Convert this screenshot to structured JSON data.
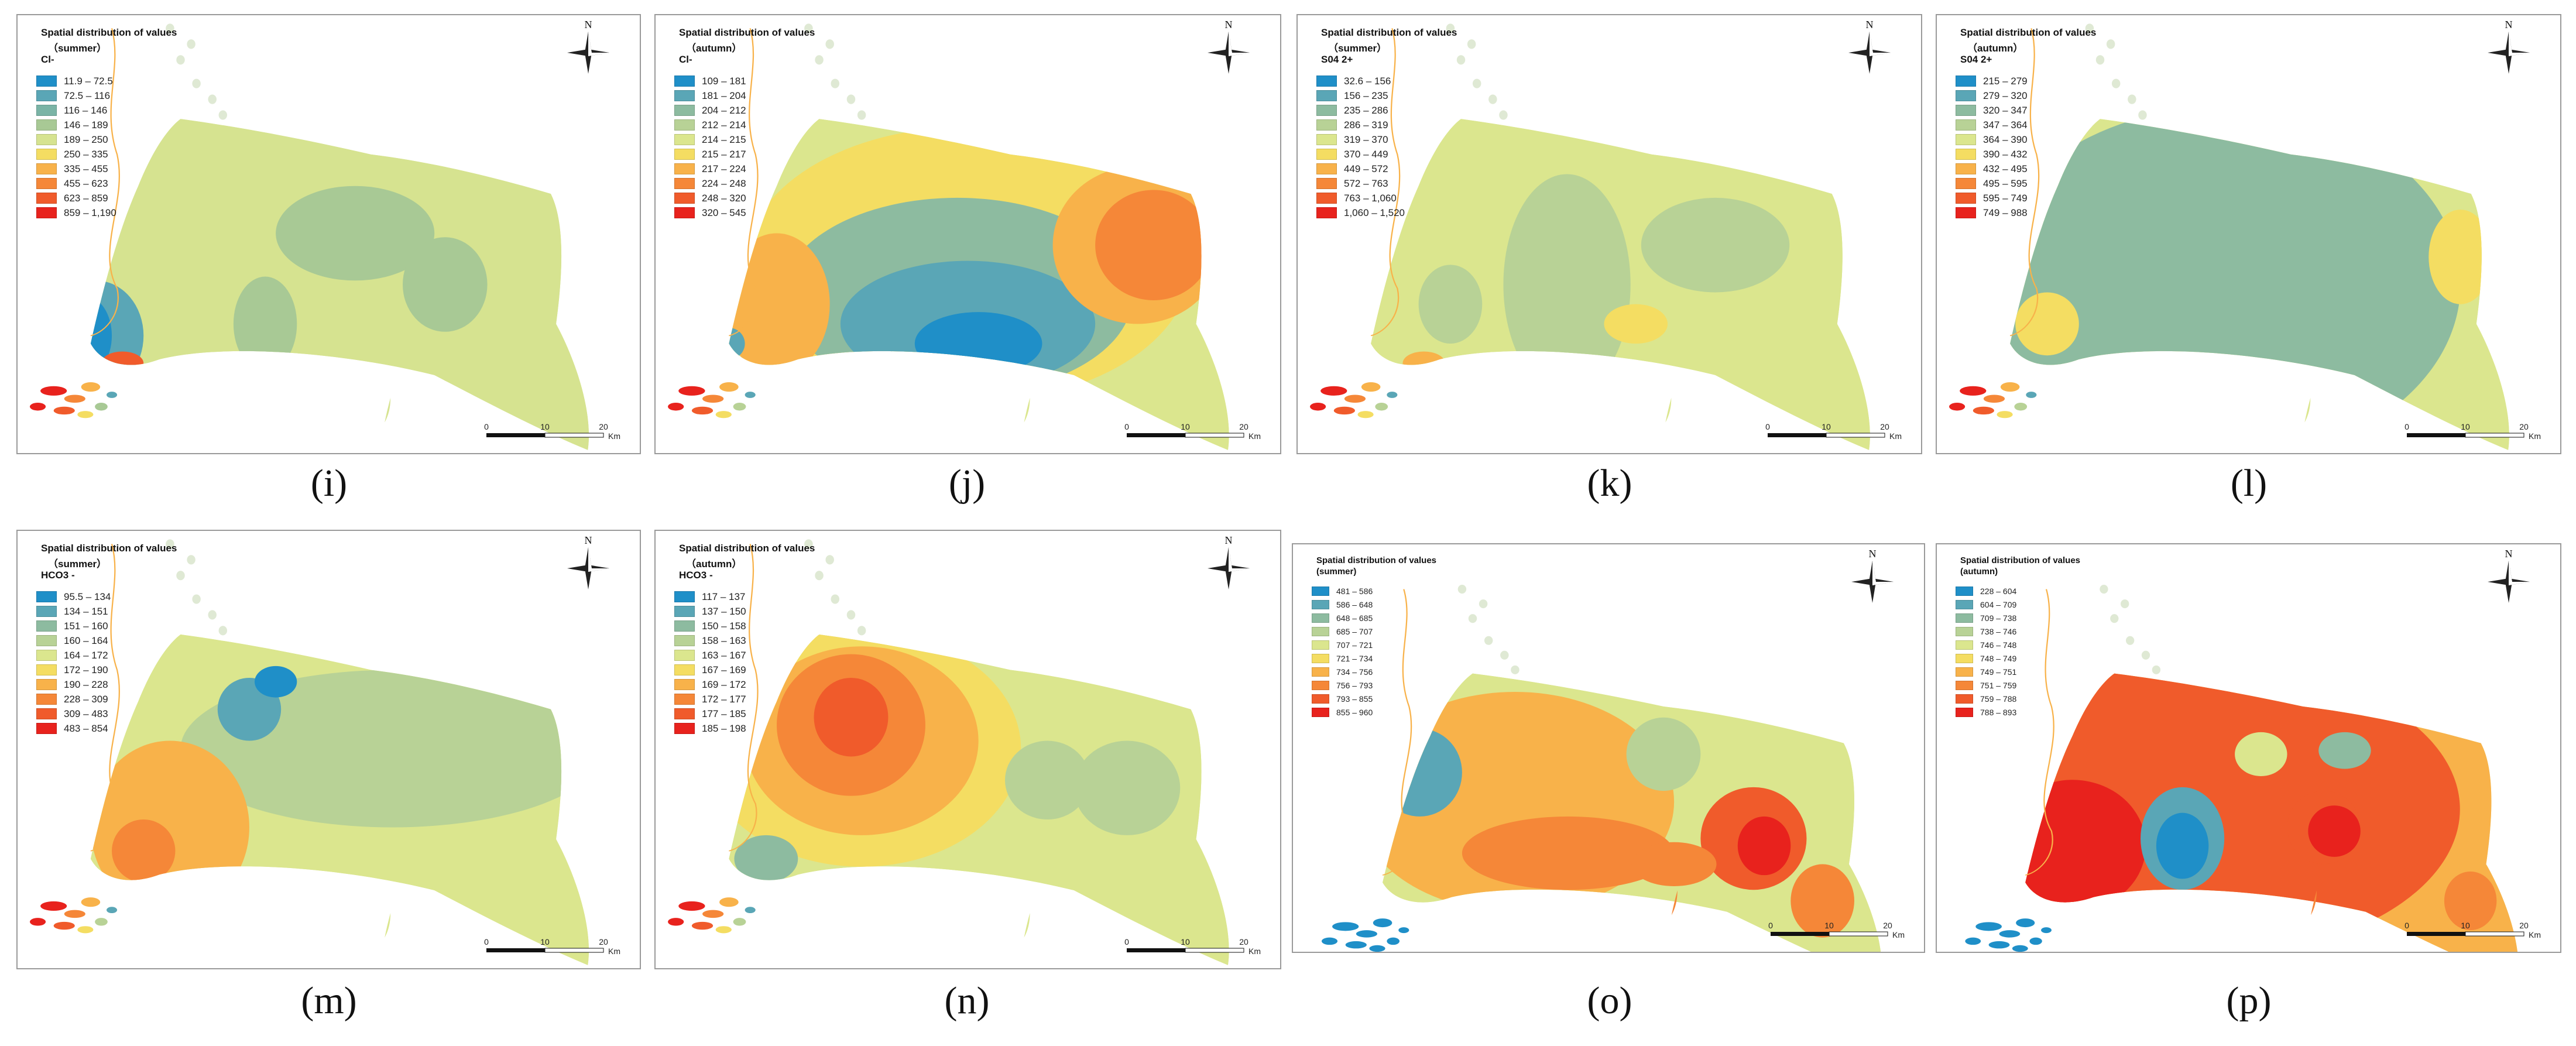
{
  "panels": [
    {
      "id": "i",
      "title": "Spatial distribution of values",
      "subtitle": "（summer）",
      "param": "Cl-",
      "legend": [
        {
          "label": "11.9 – 72.5",
          "color": "#1f8fc8"
        },
        {
          "label": "72.5 – 116",
          "color": "#5aa6b6"
        },
        {
          "label": "116 – 146",
          "color": "#7ab4a6"
        },
        {
          "label": "146 – 189",
          "color": "#a8c995"
        },
        {
          "label": "189 – 250",
          "color": "#d6e390"
        },
        {
          "label": "250 – 335",
          "color": "#f4dd62"
        },
        {
          "label": "335 – 455",
          "color": "#f8b24a"
        },
        {
          "label": "455 – 623",
          "color": "#f58738"
        },
        {
          "label": "623 – 859",
          "color": "#f05b2b"
        },
        {
          "label": "859 – 1,190",
          "color": "#e8221d"
        }
      ],
      "scale": {
        "ticks": [
          "0",
          "10",
          "20"
        ],
        "unit": "Km"
      }
    },
    {
      "id": "j",
      "title": "Spatial distribution of values",
      "subtitle": "（autumn）",
      "param": "Cl-",
      "legend": [
        {
          "label": "109 – 181",
          "color": "#1f8fc8"
        },
        {
          "label": "181 – 204",
          "color": "#5aa6b6"
        },
        {
          "label": "204 – 212",
          "color": "#8dbba0"
        },
        {
          "label": "212 – 214",
          "color": "#b8d296"
        },
        {
          "label": "214 – 215",
          "color": "#dbe68e"
        },
        {
          "label": "215 – 217",
          "color": "#f4dd62"
        },
        {
          "label": "217 – 224",
          "color": "#f8b24a"
        },
        {
          "label": "224 – 248",
          "color": "#f58738"
        },
        {
          "label": "248 – 320",
          "color": "#f05b2b"
        },
        {
          "label": "320 – 545",
          "color": "#e8221d"
        }
      ],
      "scale": {
        "ticks": [
          "0",
          "10",
          "20"
        ],
        "unit": "Km"
      }
    },
    {
      "id": "k",
      "title": "Spatial distribution of values",
      "subtitle": "（summer）",
      "param": "S04 2+",
      "legend": [
        {
          "label": "32.6 – 156",
          "color": "#1f8fc8"
        },
        {
          "label": "156 – 235",
          "color": "#5aa6b6"
        },
        {
          "label": "235 – 286",
          "color": "#8dbba0"
        },
        {
          "label": "286 – 319",
          "color": "#b8d296"
        },
        {
          "label": "319 – 370",
          "color": "#dbe68e"
        },
        {
          "label": "370 – 449",
          "color": "#f4dd62"
        },
        {
          "label": "449 – 572",
          "color": "#f8b24a"
        },
        {
          "label": "572 – 763",
          "color": "#f58738"
        },
        {
          "label": "763 – 1,060",
          "color": "#f05b2b"
        },
        {
          "label": "1,060 – 1,520",
          "color": "#e8221d"
        }
      ],
      "scale": {
        "ticks": [
          "0",
          "10",
          "20"
        ],
        "unit": "Km"
      }
    },
    {
      "id": "l",
      "title": "Spatial distribution of values",
      "subtitle": "（autumn）",
      "param": "S04 2+",
      "legend": [
        {
          "label": "215 – 279",
          "color": "#1f8fc8"
        },
        {
          "label": "279 – 320",
          "color": "#5aa6b6"
        },
        {
          "label": "320 – 347",
          "color": "#8dbba0"
        },
        {
          "label": "347 – 364",
          "color": "#b8d296"
        },
        {
          "label": "364 – 390",
          "color": "#dbe68e"
        },
        {
          "label": "390 – 432",
          "color": "#f4dd62"
        },
        {
          "label": "432 – 495",
          "color": "#f8b24a"
        },
        {
          "label": "495 – 595",
          "color": "#f58738"
        },
        {
          "label": "595 – 749",
          "color": "#f05b2b"
        },
        {
          "label": "749 – 988",
          "color": "#e8221d"
        }
      ],
      "scale": {
        "ticks": [
          "0",
          "10",
          "20"
        ],
        "unit": "Km"
      }
    },
    {
      "id": "m",
      "title": "Spatial distribution of values",
      "subtitle": "（summer）",
      "param": "HCO3 -",
      "legend": [
        {
          "label": "95.5 – 134",
          "color": "#1f8fc8"
        },
        {
          "label": "134 – 151",
          "color": "#5aa6b6"
        },
        {
          "label": "151 – 160",
          "color": "#8dbba0"
        },
        {
          "label": "160 – 164",
          "color": "#b8d296"
        },
        {
          "label": "164 – 172",
          "color": "#dbe68e"
        },
        {
          "label": "172 – 190",
          "color": "#f4dd62"
        },
        {
          "label": "190 – 228",
          "color": "#f8b24a"
        },
        {
          "label": "228 – 309",
          "color": "#f58738"
        },
        {
          "label": "309 – 483",
          "color": "#f05b2b"
        },
        {
          "label": "483 – 854",
          "color": "#e8221d"
        }
      ],
      "scale": {
        "ticks": [
          "0",
          "10",
          "20"
        ],
        "unit": "Km"
      }
    },
    {
      "id": "n",
      "title": "Spatial distribution of values",
      "subtitle": "（autumn）",
      "param": "HCO3 -",
      "legend": [
        {
          "label": "117 – 137",
          "color": "#1f8fc8"
        },
        {
          "label": "137 – 150",
          "color": "#5aa6b6"
        },
        {
          "label": "150 – 158",
          "color": "#8dbba0"
        },
        {
          "label": "158 – 163",
          "color": "#b8d296"
        },
        {
          "label": "163 – 167",
          "color": "#dbe68e"
        },
        {
          "label": "167 – 169",
          "color": "#f4dd62"
        },
        {
          "label": "169 – 172",
          "color": "#f8b24a"
        },
        {
          "label": "172 – 177",
          "color": "#f58738"
        },
        {
          "label": "177 – 185",
          "color": "#f05b2b"
        },
        {
          "label": "185 – 198",
          "color": "#e8221d"
        }
      ],
      "scale": {
        "ticks": [
          "0",
          "10",
          "20"
        ],
        "unit": "Km"
      }
    },
    {
      "id": "o",
      "title": "Spatial distribution of values",
      "subtitle": "(summer)",
      "param": "",
      "legend": [
        {
          "label": "481 – 586",
          "color": "#1f8fc8"
        },
        {
          "label": "586 – 648",
          "color": "#5aa6b6"
        },
        {
          "label": "648 – 685",
          "color": "#8dbba0"
        },
        {
          "label": "685 – 707",
          "color": "#b8d296"
        },
        {
          "label": "707 – 721",
          "color": "#dbe68e"
        },
        {
          "label": "721 – 734",
          "color": "#f4dd62"
        },
        {
          "label": "734 – 756",
          "color": "#f8b24a"
        },
        {
          "label": "756 – 793",
          "color": "#f58738"
        },
        {
          "label": "793 – 855",
          "color": "#f05b2b"
        },
        {
          "label": "855 – 960",
          "color": "#e8221d"
        }
      ],
      "scale": {
        "ticks": [
          "0",
          "10",
          "20"
        ],
        "unit": "Km"
      }
    },
    {
      "id": "p",
      "title": "Spatial distribution of values",
      "subtitle": "(autumn)",
      "param": "",
      "legend": [
        {
          "label": "228 – 604",
          "color": "#1f8fc8"
        },
        {
          "label": "604 – 709",
          "color": "#5aa6b6"
        },
        {
          "label": "709 – 738",
          "color": "#8dbba0"
        },
        {
          "label": "738 – 746",
          "color": "#b8d296"
        },
        {
          "label": "746 – 748",
          "color": "#dbe68e"
        },
        {
          "label": "748 – 749",
          "color": "#f4dd62"
        },
        {
          "label": "749 – 751",
          "color": "#f8b24a"
        },
        {
          "label": "751 – 759",
          "color": "#f58738"
        },
        {
          "label": "759 – 788",
          "color": "#f05b2b"
        },
        {
          "label": "788 – 893",
          "color": "#e8221d"
        }
      ],
      "scale": {
        "ticks": [
          "0",
          "10",
          "20"
        ],
        "unit": "Km"
      }
    }
  ],
  "north_label": "N",
  "captions": {
    "i": "(i)",
    "j": "(j)",
    "k": "(k)",
    "l": "(l)",
    "m": "(m)",
    "n": "(n)",
    "o": "(o)",
    "p": "(p)"
  }
}
